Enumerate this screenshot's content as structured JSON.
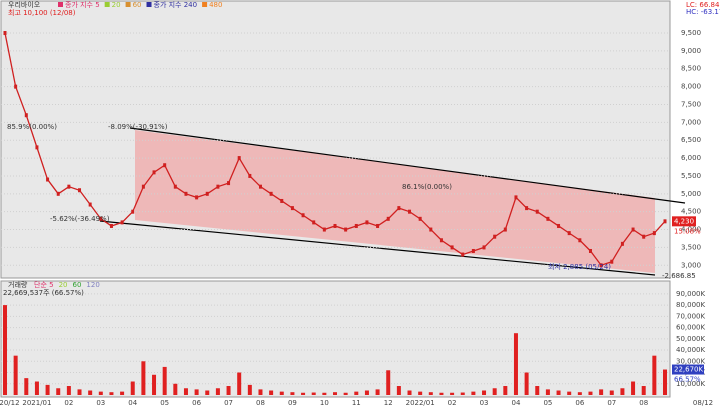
{
  "chart_data": [
    {
      "type": "line",
      "title": "우리바이오",
      "legend": [
        {
          "name": "종가 지수 5",
          "color": "#e0306a"
        },
        {
          "name": "20",
          "color": "#9acd32"
        },
        {
          "name": "60",
          "color": "#d89030"
        },
        {
          "name": "종가 지수 240",
          "color": "#3030a0"
        },
        {
          "name": "480",
          "color": "#f08020"
        }
      ],
      "subtitle": "최고 10,100 (12/08)",
      "corner_labels": [
        "LC: 66.84",
        "HC: -63.17"
      ],
      "annotations": [
        "-8.09%(-30.91%)",
        "-5.62%(-36.49%)",
        "85.9%(0.00%)",
        "86.1%(0.00%)",
        "최저 2,885 (05/24)",
        "-2,686.85"
      ],
      "price_tag": "4,230",
      "change_tag": "15.08%",
      "categories": [
        "2020/12",
        null,
        null,
        "2021/01",
        null,
        null,
        "02",
        null,
        null,
        "03",
        null,
        null,
        "04",
        null,
        null,
        "05",
        null,
        null,
        "06",
        null,
        null,
        "07",
        null,
        null,
        "08",
        null,
        null,
        "09",
        null,
        null,
        "10",
        null,
        null,
        "11",
        null,
        null,
        "12",
        null,
        null,
        "2022/01",
        null,
        null,
        "02",
        null,
        null,
        "03",
        null,
        null,
        "04",
        null,
        null,
        "05",
        null,
        null,
        "06",
        null,
        null,
        "07",
        null,
        null,
        "08",
        null,
        null
      ],
      "last_date_label": "08/12",
      "series": [
        {
          "name": "우리바이오",
          "color": "#d02020",
          "values": [
            9500,
            8000,
            7200,
            6300,
            5400,
            5000,
            5200,
            5100,
            4700,
            4300,
            4100,
            4200,
            4500,
            5200,
            5600,
            5800,
            5200,
            5000,
            4900,
            5000,
            5200,
            5300,
            6000,
            5500,
            5200,
            5000,
            4800,
            4600,
            4400,
            4200,
            4000,
            4100,
            4000,
            4100,
            4200,
            4100,
            4300,
            4600,
            4500,
            4300,
            4000,
            3700,
            3500,
            3300,
            3400,
            3500,
            3800,
            4000,
            4900,
            4600,
            4500,
            4300,
            4100,
            3900,
            3700,
            3400,
            3000,
            3100,
            3600,
            4000,
            3800,
            3900,
            4230
          ]
        }
      ],
      "ylim": [
        2700,
        10200
      ],
      "yticks": [
        {
          "value": 3000,
          "label": "3,000"
        },
        {
          "value": 3500,
          "label": "3,500"
        },
        {
          "value": 4000,
          "label": "4,000"
        },
        {
          "value": 4500,
          "label": "4,500"
        },
        {
          "value": 5000,
          "label": "5,000"
        },
        {
          "value": 5500,
          "label": "5,500"
        },
        {
          "value": 6000,
          "label": "6,000"
        },
        {
          "value": 6500,
          "label": "6,500"
        },
        {
          "value": 7000,
          "label": "7,000"
        },
        {
          "value": 7500,
          "label": "7,500"
        },
        {
          "value": 8000,
          "label": "8,000"
        },
        {
          "value": 8500,
          "label": "8,500"
        },
        {
          "value": 9000,
          "label": "9,000"
        },
        {
          "value": 9500,
          "label": "9,500"
        }
      ]
    },
    {
      "type": "bar",
      "title": "거래량",
      "legend": [
        {
          "name": "단순 5",
          "color": "#e0306a"
        },
        {
          "name": "20",
          "color": "#9acd32"
        },
        {
          "name": "60",
          "color": "#30a030"
        },
        {
          "name": "120",
          "color": "#8080c0"
        }
      ],
      "subtitle": "22,669,537주 (66.57%)",
      "price_tag": "22,670K",
      "change_tag": "66.57%",
      "series": [
        {
          "name": "거래량",
          "color": "#e02020",
          "values": [
            80000,
            35000,
            15000,
            12000,
            9000,
            6000,
            8000,
            5000,
            4000,
            3000,
            2500,
            3000,
            12000,
            30000,
            18000,
            25000,
            10000,
            6000,
            5000,
            4000,
            6000,
            8000,
            20000,
            9000,
            5000,
            4000,
            3000,
            2500,
            2000,
            2200,
            2000,
            2500,
            2000,
            3000,
            4000,
            5000,
            22000,
            8000,
            4000,
            3000,
            2500,
            2000,
            2000,
            2200,
            3000,
            4000,
            6000,
            8000,
            55000,
            20000,
            8000,
            5000,
            4000,
            3000,
            2500,
            3000,
            5000,
            4000,
            6000,
            12000,
            8000,
            35000,
            22670
          ]
        }
      ],
      "ylim": [
        0,
        97000
      ],
      "yticks": [
        {
          "value": 10000,
          "label": "10,000K"
        },
        {
          "value": 20000,
          "label": "20,000K"
        },
        {
          "value": 30000,
          "label": "30,000K"
        },
        {
          "value": 40000,
          "label": "40,000K"
        },
        {
          "value": 50000,
          "label": "50,000K"
        },
        {
          "value": 60000,
          "label": "60,000K"
        },
        {
          "value": 70000,
          "label": "70,000K"
        },
        {
          "value": 80000,
          "label": "80,000K"
        },
        {
          "value": 90000,
          "label": "90,000K"
        }
      ]
    }
  ]
}
